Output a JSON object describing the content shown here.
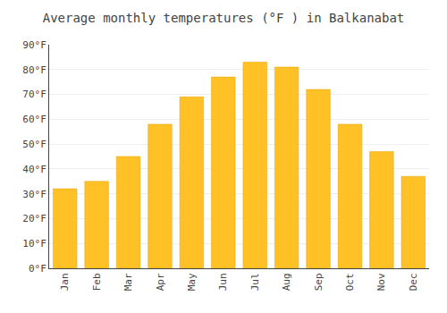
{
  "chart_data": {
    "type": "bar",
    "title": "Average monthly temperatures (°F ) in Balkanabat",
    "categories": [
      "Jan",
      "Feb",
      "Mar",
      "Apr",
      "May",
      "Jun",
      "Jul",
      "Aug",
      "Sep",
      "Oct",
      "Nov",
      "Dec"
    ],
    "values": [
      32,
      35,
      45,
      58,
      69,
      77,
      83,
      81,
      72,
      58,
      47,
      37
    ],
    "color": "#FFC125",
    "ylim": [
      0,
      90
    ],
    "yticks": [
      {
        "value": 0,
        "label": "0°F"
      },
      {
        "value": 10,
        "label": "10°F"
      },
      {
        "value": 20,
        "label": "20°F"
      },
      {
        "value": 30,
        "label": "30°F"
      },
      {
        "value": 40,
        "label": "40°F"
      },
      {
        "value": 50,
        "label": "50°F"
      },
      {
        "value": 60,
        "label": "60°F"
      },
      {
        "value": 70,
        "label": "70°F"
      },
      {
        "value": 80,
        "label": "80°F"
      },
      {
        "value": 90,
        "label": "90°F"
      }
    ],
    "grid": true
  }
}
